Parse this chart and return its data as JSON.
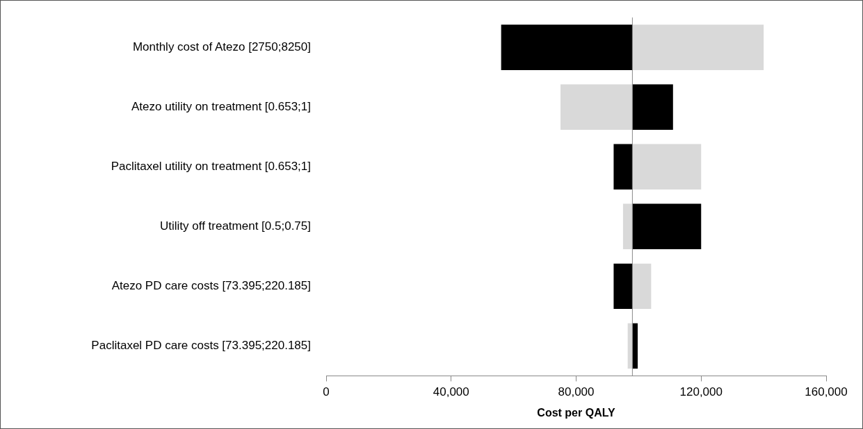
{
  "chart_data": {
    "type": "bar",
    "orientation": "horizontal",
    "xlabel": "Cost per QALY",
    "categories": [
      "Monthly cost of Atezo [2750;8250]",
      "Atezo utility on treatment [0.653;1]",
      "Paclitaxel utility on treatment [0.653;1]",
      "Utility off treatment [0.5;0.75]",
      "Atezo PD care costs [73.395;220.185]",
      "Paclitaxel PD care costs [73.395;220.185]"
    ],
    "series": [
      {
        "color": "#000000",
        "base": [
          98000,
          98000,
          98000,
          98000,
          98000,
          98000
        ],
        "values": [
          -42000,
          13000,
          -6000,
          22000,
          -6000,
          1700
        ]
      },
      {
        "color": "#d9d9d9",
        "base": [
          98000,
          98000,
          98000,
          98000,
          98000,
          98000
        ],
        "values": [
          42000,
          -23000,
          22000,
          -3000,
          6000,
          -1500
        ]
      }
    ],
    "xlim": [
      0,
      160000
    ],
    "xticks": [
      {
        "value": 0,
        "label": "0"
      },
      {
        "value": 40000,
        "label": "40,000"
      },
      {
        "value": 80000,
        "label": "80,000"
      },
      {
        "value": 120000,
        "label": "120,000"
      },
      {
        "value": 160000,
        "label": "160,000"
      }
    ],
    "ref_lines": [
      {
        "axis": "x",
        "value": 98000,
        "color": "#888888"
      }
    ],
    "grid": false,
    "legend": false
  }
}
